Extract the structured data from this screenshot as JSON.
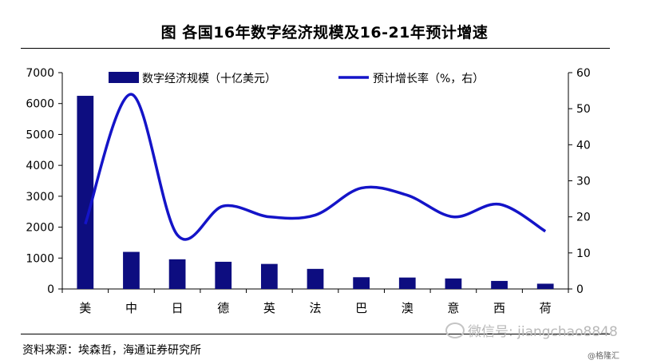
{
  "header": {
    "title": "图 各国16年数字经济规模及16-21年预计增速"
  },
  "footer": {
    "source": "资料来源：埃森哲，海通证券研究所"
  },
  "watermark": {
    "text": "微信号: jiangchao8848",
    "credit": "@格隆汇"
  },
  "colors": {
    "bar": "#0d0d80",
    "line": "#1414c8"
  },
  "chart_data": {
    "type": "bar",
    "categories": [
      "美",
      "中",
      "日",
      "德",
      "英",
      "法",
      "巴",
      "澳",
      "意",
      "西",
      "荷"
    ],
    "series": [
      {
        "name": "数字经济规模（十亿美元）",
        "type": "bar",
        "axis": "left",
        "values": [
          6250,
          1200,
          960,
          880,
          810,
          650,
          380,
          370,
          340,
          260,
          170
        ]
      },
      {
        "name": "预计增长率（%，右）",
        "type": "line",
        "axis": "right",
        "values": [
          18,
          54,
          15,
          23,
          20,
          20.5,
          28,
          26,
          20,
          23.5,
          16
        ]
      }
    ],
    "yleft": {
      "min": 0,
      "max": 7000,
      "ticks": [
        0,
        1000,
        2000,
        3000,
        4000,
        5000,
        6000,
        7000
      ]
    },
    "yright": {
      "min": 0,
      "max": 60,
      "ticks": [
        0,
        10,
        20,
        30,
        40,
        50,
        60
      ]
    },
    "legend": "top",
    "grid": false
  }
}
